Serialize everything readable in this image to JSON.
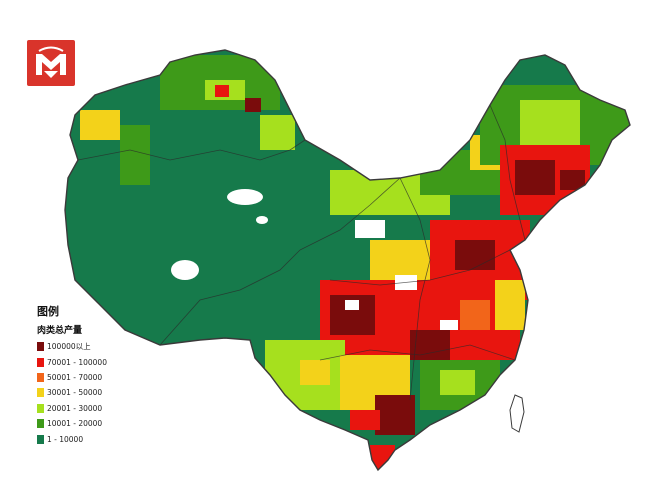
{
  "map": {
    "logo_icon": "brand-logo-icon",
    "legend": {
      "title": "图例",
      "subtitle": "肉类总产量",
      "classes": [
        {
          "label": "100000以上",
          "color": "#7a0c0c"
        },
        {
          "label": "70001 - 100000",
          "color": "#e8150f"
        },
        {
          "label": "50001 - 70000",
          "color": "#f2651a"
        },
        {
          "label": "30001 - 50000",
          "color": "#f3d21a"
        },
        {
          "label": "20001 - 30000",
          "color": "#a6e01e"
        },
        {
          "label": "10001 - 20000",
          "color": "#3e9a19"
        },
        {
          "label": "1 - 10000",
          "color": "#167a4b"
        }
      ]
    },
    "colors": {
      "background": "#ffffff",
      "border": "#3a3a3a",
      "no_data": "#ffffff"
    }
  }
}
